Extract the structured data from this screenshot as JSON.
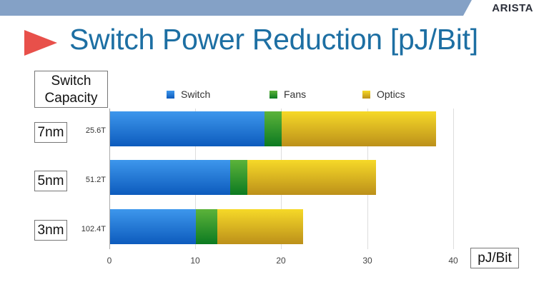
{
  "header": {
    "logo": "ARISTA",
    "title": "Switch Power Reduction [pJ/Bit]",
    "bar_color": "#84a1c6",
    "title_color": "#1d6fa3",
    "arrow_color": "#e8504a"
  },
  "labels": {
    "capacity_header_line1": "Switch",
    "capacity_header_line2": "Capacity",
    "unit": "pJ/Bit"
  },
  "rows": [
    {
      "node": "7nm",
      "capacity": "25.6T"
    },
    {
      "node": "5nm",
      "capacity": "51.2T"
    },
    {
      "node": "3nm",
      "capacity": "102.4T"
    }
  ],
  "legend": [
    {
      "label": "Switch",
      "color": "#1f78d8"
    },
    {
      "label": "Fans",
      "color": "#2b9a2e"
    },
    {
      "label": "Optics",
      "color": "#e3bb22"
    }
  ],
  "axis": {
    "ticks": [
      "0",
      "10",
      "20",
      "30",
      "40"
    ]
  },
  "chart_data": {
    "type": "bar",
    "orientation": "horizontal",
    "stacked": true,
    "title": "Switch Power Reduction [pJ/Bit]",
    "xlabel": "pJ/Bit",
    "ylabel": "Switch Capacity",
    "categories": [
      "7nm (25.6T)",
      "5nm (51.2T)",
      "3nm (102.4T)"
    ],
    "series": [
      {
        "name": "Switch",
        "values": [
          18,
          14,
          10
        ]
      },
      {
        "name": "Fans",
        "values": [
          2,
          2,
          2.5
        ]
      },
      {
        "name": "Optics",
        "values": [
          18,
          15,
          10
        ]
      }
    ],
    "totals": [
      38,
      31,
      22.5
    ],
    "xlim": [
      0,
      40
    ],
    "xticks": [
      0,
      10,
      20,
      30,
      40
    ],
    "grid": true,
    "legend_position": "top"
  }
}
